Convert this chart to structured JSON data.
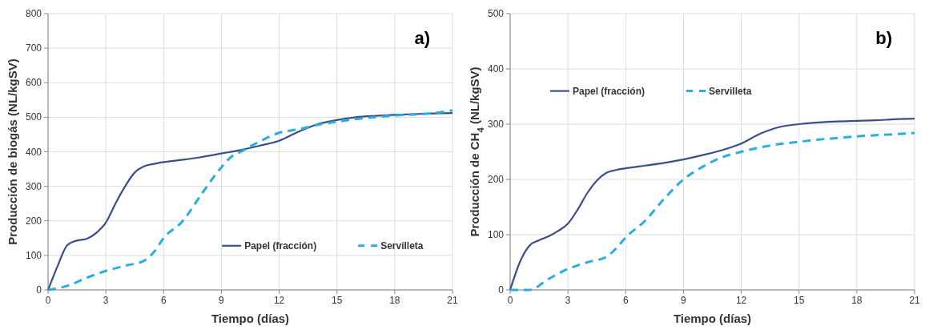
{
  "chart_data": [
    {
      "type": "line",
      "xlabel": "Tiempo (días)",
      "ylabel": "Producción de biogás (NL/kgSV)",
      "annotations": [
        "a)"
      ],
      "xlim": [
        0,
        21
      ],
      "xticks": [
        0,
        3,
        6,
        9,
        12,
        15,
        18,
        21
      ],
      "ylim": [
        0,
        800
      ],
      "yticks": [
        0,
        100,
        200,
        300,
        400,
        500,
        600,
        700,
        800
      ],
      "grid": true,
      "legend": "bottom right",
      "marker": "none",
      "series": [
        {
          "name": "Papel (fracción)",
          "color": "#3b4f86",
          "line_style": "solid",
          "x": [
            0,
            0.5,
            1,
            1.5,
            2,
            2.5,
            3,
            3.5,
            4,
            4.5,
            5,
            5.5,
            6,
            7,
            8,
            9,
            10,
            11,
            12,
            13,
            14,
            15,
            16,
            17,
            18,
            19,
            20,
            21
          ],
          "values": [
            0,
            70,
            130,
            143,
            148,
            165,
            195,
            250,
            300,
            340,
            358,
            365,
            370,
            377,
            385,
            395,
            405,
            418,
            432,
            458,
            480,
            492,
            500,
            504,
            507,
            509,
            511,
            512
          ]
        },
        {
          "name": "Servilleta",
          "color": "#29aee0",
          "line_style": "dashed",
          "x": [
            0,
            1,
            2,
            3,
            4,
            5,
            5.5,
            6,
            7,
            8,
            9,
            9.5,
            10,
            11,
            12,
            13,
            14,
            15,
            16,
            17,
            18,
            19,
            20,
            21
          ],
          "values": [
            0,
            12,
            35,
            55,
            70,
            85,
            110,
            150,
            200,
            280,
            355,
            385,
            400,
            430,
            455,
            465,
            478,
            487,
            495,
            500,
            505,
            508,
            512,
            520
          ]
        }
      ]
    },
    {
      "type": "line",
      "xlabel": "Tiempo (días)",
      "ylabel": "Producción de CH$_{4}$ (NL/kgSV)",
      "annotations": [
        "b)"
      ],
      "xlim": [
        0,
        21
      ],
      "xticks": [
        0,
        3,
        6,
        9,
        12,
        15,
        18,
        21
      ],
      "ylim": [
        0,
        500
      ],
      "yticks": [
        0,
        100,
        200,
        300,
        400,
        500
      ],
      "grid": true,
      "legend": "top left",
      "marker": "none",
      "series": [
        {
          "name": "Papel (fracción)",
          "color": "#3b4f86",
          "line_style": "solid",
          "x": [
            0,
            0.5,
            1,
            1.5,
            2,
            2.5,
            3,
            3.5,
            4,
            4.5,
            5,
            5.5,
            6,
            7,
            8,
            9,
            10,
            11,
            12,
            13,
            14,
            15,
            16,
            17,
            18,
            19,
            20,
            21
          ],
          "values": [
            0,
            50,
            80,
            90,
            97,
            107,
            120,
            145,
            175,
            198,
            212,
            217,
            220,
            225,
            230,
            236,
            244,
            253,
            265,
            283,
            295,
            300,
            303,
            305,
            306,
            307,
            309,
            310
          ]
        },
        {
          "name": "Servilleta",
          "color": "#29aee0",
          "line_style": "dashed",
          "x": [
            0,
            1,
            2,
            3,
            4,
            5,
            5.5,
            6,
            7,
            8,
            9,
            10,
            11,
            12,
            13,
            14,
            15,
            16,
            17,
            18,
            19,
            20,
            21
          ],
          "values": [
            0,
            0,
            20,
            38,
            50,
            60,
            75,
            95,
            125,
            165,
            200,
            223,
            240,
            250,
            258,
            264,
            268,
            272,
            275,
            278,
            280,
            282,
            284
          ]
        }
      ]
    }
  ]
}
